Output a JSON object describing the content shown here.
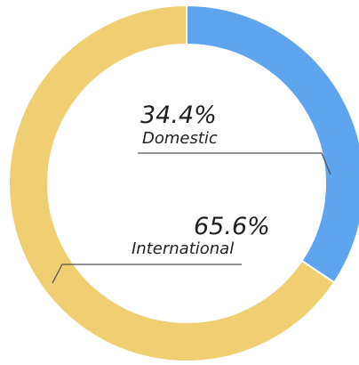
{
  "chart_data": {
    "type": "pie",
    "variant": "donut",
    "title": "",
    "categories": [
      "Domestic",
      "International"
    ],
    "values": [
      34.4,
      65.6
    ],
    "value_labels": [
      "34.4%",
      "65.6%"
    ],
    "colors": [
      "#5ea4ee",
      "#f0cf73"
    ],
    "legend": "none"
  }
}
